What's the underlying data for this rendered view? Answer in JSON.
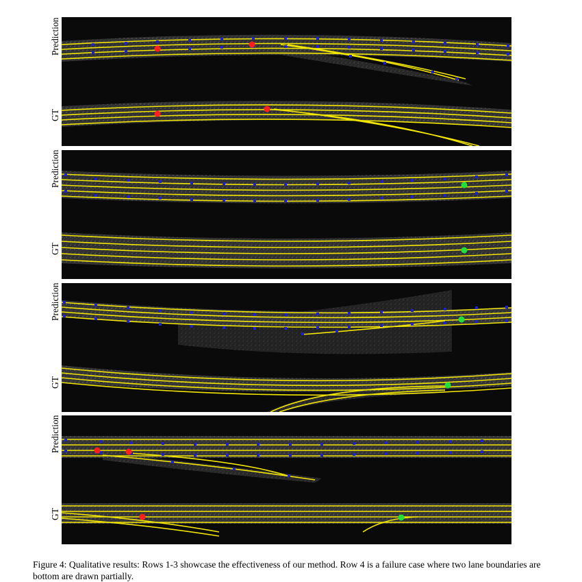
{
  "rows": [
    {
      "top_label": "Prediction",
      "bottom_label": "GT"
    },
    {
      "top_label": "Prediction",
      "bottom_label": "GT"
    },
    {
      "top_label": "Prediction",
      "bottom_label": "GT"
    },
    {
      "top_label": "Prediction",
      "bottom_label": "GT"
    }
  ],
  "caption": {
    "label": "Figure 4:",
    "text": "Qualitative results: Rows 1-3 showcase the effectiveness of our method. Row 4 is a failure case where two lane boundaries are bottom are drawn partially."
  },
  "colors": {
    "lane": "#f2e600",
    "keypoint": "#2020c8",
    "error_marker": "#ff1f1f",
    "correct_marker": "#22e03a",
    "background": "#0a0a0a"
  }
}
